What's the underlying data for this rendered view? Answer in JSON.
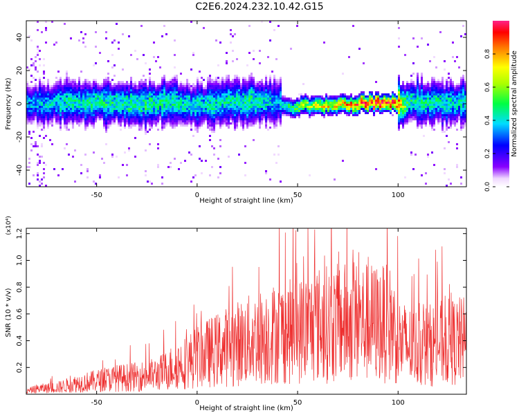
{
  "title": "C2E6.2024.232.10.42.G15",
  "chart_data": [
    {
      "type": "heatmap",
      "xlabel": "Height of straight line (km)",
      "ylabel": "Frequency (Hz)",
      "xlim": [
        -85,
        134
      ],
      "ylim": [
        -50,
        50
      ],
      "xticks": [
        -50,
        0,
        50,
        100
      ],
      "yticks": [
        -40,
        -20,
        0,
        20,
        40
      ],
      "colorbar": {
        "label": "Normalized spectral amplitude",
        "ticks": [
          "0.0",
          "0.2",
          "0.4",
          "0.6",
          "0.8"
        ],
        "range": [
          0,
          1
        ]
      },
      "centerline_hz": [
        [
          -85,
          0
        ],
        [
          -70,
          0
        ],
        [
          -50,
          0.5
        ],
        [
          -30,
          0
        ],
        [
          -10,
          0
        ],
        [
          0,
          -1
        ],
        [
          20,
          1
        ],
        [
          40,
          1
        ],
        [
          45,
          -2
        ],
        [
          55,
          -1
        ],
        [
          70,
          -1
        ],
        [
          85,
          0.5
        ],
        [
          100,
          0.5
        ],
        [
          105,
          1
        ],
        [
          134,
          0
        ]
      ],
      "peak_amplitude": [
        [
          -85,
          0.35
        ],
        [
          -50,
          0.45
        ],
        [
          -20,
          0.45
        ],
        [
          0,
          0.4
        ],
        [
          30,
          0.45
        ],
        [
          40,
          0.35
        ],
        [
          50,
          0.55
        ],
        [
          60,
          0.65
        ],
        [
          75,
          0.75
        ],
        [
          85,
          0.9
        ],
        [
          98,
          0.9
        ],
        [
          105,
          0.45
        ],
        [
          134,
          0.4
        ]
      ]
    },
    {
      "type": "line",
      "xlabel": "Height of straight line (km)",
      "ylabel": "SNR (10 * v/v)",
      "y_multiplier": "(x10⁴)",
      "xlim": [
        -85,
        134
      ],
      "ylim": [
        0,
        1.24
      ],
      "xticks": [
        -50,
        0,
        50,
        100
      ],
      "yticks": [
        "0.2",
        "0.4",
        "0.6",
        "0.8",
        "1.0",
        "1.2"
      ],
      "series": [
        {
          "color": "#ee3030",
          "x": [
            -85,
            -80,
            -70,
            -60,
            -50,
            -40,
            -30,
            -20,
            -15,
            -10,
            -5,
            0,
            10,
            20,
            30,
            40,
            50,
            60,
            70,
            80,
            90,
            97,
            100,
            105,
            110,
            120,
            134
          ],
          "values": [
            0.02,
            0.04,
            0.05,
            0.08,
            0.1,
            0.12,
            0.13,
            0.15,
            0.18,
            0.22,
            0.24,
            0.28,
            0.33,
            0.38,
            0.42,
            0.46,
            0.47,
            0.52,
            0.53,
            0.54,
            0.53,
            0.52,
            0.4,
            0.36,
            0.35,
            0.38,
            0.4
          ]
        }
      ]
    }
  ]
}
